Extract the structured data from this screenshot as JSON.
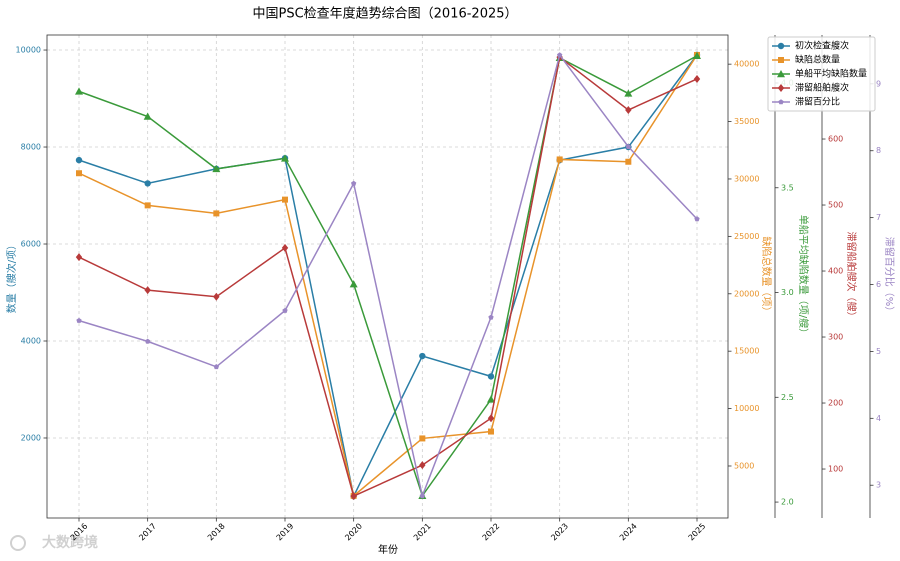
{
  "chart_data": {
    "type": "line",
    "title": "中国PSC检查年度趋势综合图（2016-2025）",
    "xlabel": "年份",
    "watermark": "大数跨境",
    "categories": [
      "2016",
      "2017",
      "2018",
      "2019",
      "2020",
      "2021",
      "2022",
      "2023",
      "2024",
      "2025"
    ],
    "grid": true,
    "legend": "upper right",
    "ylabel": "数量（艘次/项）",
    "ylim": [
      350,
      10310
    ],
    "yticks": [
      2000,
      4000,
      6000,
      8000,
      10000
    ],
    "y2label": "缺陷总数量（项）",
    "y2lim": [
      470,
      42540
    ],
    "y2ticks": [
      5000,
      10000,
      15000,
      20000,
      25000,
      30000,
      35000,
      40000
    ],
    "y3label": "单船平均缺陷数量（项/艘）",
    "y3lim": [
      1.924,
      4.229
    ],
    "y3ticks": [
      {
        "value": 2,
        "label": "2.0"
      },
      2.5,
      {
        "value": 3,
        "label": "3.0"
      },
      3.5,
      {
        "value": 4,
        "label": "4.0"
      }
    ],
    "y4label": "滞留船舶艘次（艘）",
    "y4lim": [
      25.8,
      757.6
    ],
    "y4ticks": [
      100,
      200,
      300,
      400,
      500,
      600
    ],
    "y5label": "滞留百分比（%）",
    "y5lim": [
      2.51,
      9.73
    ],
    "y5ticks": [
      3,
      4,
      5,
      6,
      7,
      8,
      9
    ],
    "series": [
      {
        "name": "初次检查艘次",
        "color": "#2a7ea6",
        "marker": "circle",
        "axis": "y",
        "values": [
          7730,
          7250,
          7550,
          7770,
          800,
          3690,
          3270,
          7730,
          8000,
          9900
        ]
      },
      {
        "name": "缺陷总数量",
        "color": "#e8932a",
        "marker": "square",
        "axis": "y2",
        "values": [
          30500,
          27700,
          27000,
          28200,
          2400,
          7400,
          8000,
          31700,
          31500,
          40800
        ]
      },
      {
        "name": "单船平均缺陷数量",
        "color": "#3a9a3a",
        "marker": "triangle",
        "axis": "y3",
        "values": [
          3.96,
          3.84,
          3.59,
          3.64,
          3.04,
          2.03,
          2.49,
          4.12,
          3.95,
          4.13
        ]
      },
      {
        "name": "滞留船舶艘次",
        "color": "#b83a3a",
        "marker": "diamond",
        "axis": "y4",
        "values": [
          421,
          371,
          361,
          435,
          59,
          106,
          177,
          724,
          644,
          691
        ]
      },
      {
        "name": "滞留百分比",
        "color": "#9b85c4",
        "marker": "pentagon",
        "axis": "y5",
        "values": [
          5.46,
          5.15,
          4.77,
          5.61,
          7.51,
          2.84,
          5.51,
          9.43,
          8.06,
          6.98
        ]
      }
    ]
  }
}
